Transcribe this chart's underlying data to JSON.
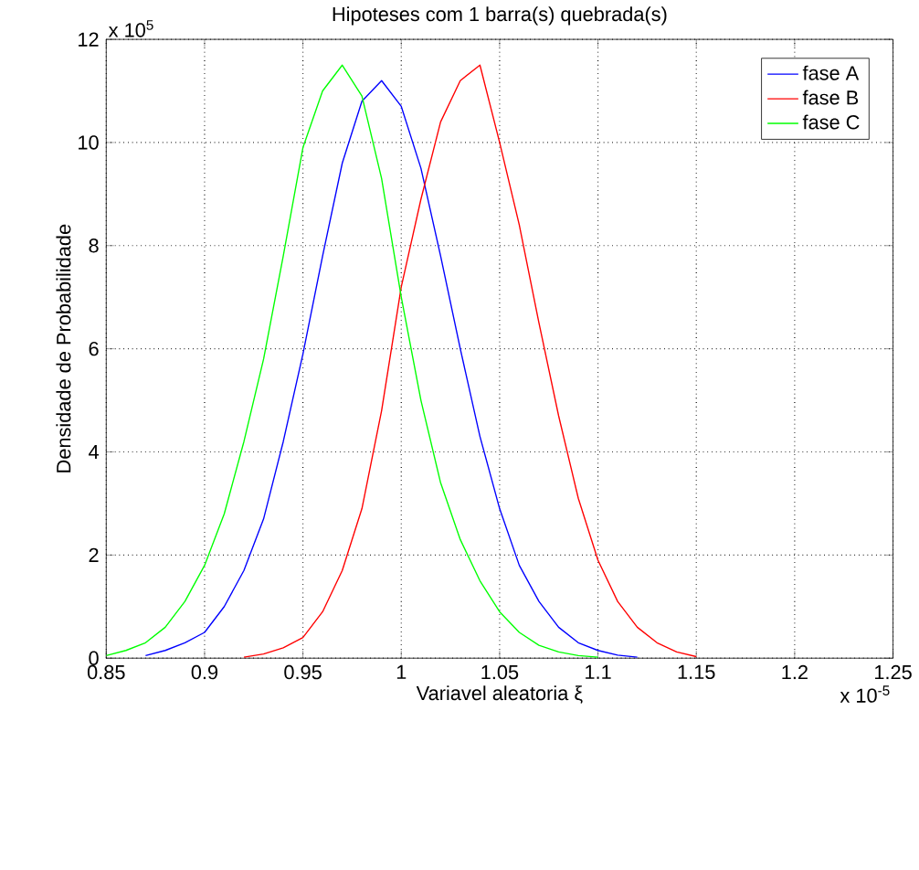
{
  "chart_data": {
    "type": "line",
    "title": "Hipoteses com 1 barra(s) quebrada(s)",
    "xlabel": "Variavel aleatoria ξ",
    "ylabel": "Densidade de Probabilidade",
    "annotations": [
      "x 10$^{5}$",
      "x 10$^{-5}$"
    ],
    "series": [
      {
        "name": "fase A",
        "color": "#0000ff",
        "x": [
          0.87,
          0.88,
          0.89,
          0.9,
          0.91,
          0.92,
          0.93,
          0.94,
          0.95,
          0.96,
          0.97,
          0.98,
          0.99,
          1.0,
          1.01,
          1.02,
          1.03,
          1.04,
          1.05,
          1.06,
          1.07,
          1.08,
          1.09,
          1.1,
          1.11,
          1.12
        ],
        "values": [
          0.05,
          0.15,
          0.3,
          0.5,
          1.0,
          1.7,
          2.7,
          4.2,
          5.9,
          7.8,
          9.6,
          10.8,
          11.2,
          10.7,
          9.5,
          7.8,
          6.0,
          4.3,
          2.9,
          1.8,
          1.1,
          0.6,
          0.3,
          0.15,
          0.06,
          0.02
        ]
      },
      {
        "name": "fase B",
        "color": "#ff0000",
        "x": [
          0.92,
          0.93,
          0.94,
          0.95,
          0.96,
          0.97,
          0.98,
          0.99,
          1.0,
          1.01,
          1.02,
          1.03,
          1.04,
          1.05,
          1.06,
          1.07,
          1.08,
          1.09,
          1.1,
          1.11,
          1.12,
          1.13,
          1.14,
          1.15
        ],
        "values": [
          0.02,
          0.08,
          0.2,
          0.4,
          0.9,
          1.7,
          2.9,
          4.8,
          7.2,
          8.9,
          10.4,
          11.2,
          11.5,
          10.0,
          8.4,
          6.5,
          4.7,
          3.1,
          1.9,
          1.1,
          0.6,
          0.3,
          0.12,
          0.03
        ]
      },
      {
        "name": "fase C",
        "color": "#00ff00",
        "x": [
          0.85,
          0.86,
          0.87,
          0.88,
          0.89,
          0.9,
          0.91,
          0.92,
          0.93,
          0.94,
          0.95,
          0.96,
          0.97,
          0.98,
          0.99,
          1.0,
          1.01,
          1.02,
          1.03,
          1.04,
          1.05,
          1.06,
          1.07,
          1.08,
          1.09,
          1.1
        ],
        "values": [
          0.05,
          0.15,
          0.3,
          0.6,
          1.1,
          1.8,
          2.8,
          4.2,
          5.8,
          7.8,
          9.9,
          11.0,
          11.5,
          10.9,
          9.3,
          7.0,
          5.0,
          3.4,
          2.3,
          1.5,
          0.9,
          0.5,
          0.25,
          0.12,
          0.05,
          0.02
        ]
      }
    ],
    "xlim": [
      0.85,
      1.25
    ],
    "xticks": [
      0.85,
      0.9,
      0.95,
      1,
      1.05,
      1.1,
      1.15,
      1.2,
      1.25
    ],
    "ylim": [
      0,
      12
    ],
    "yticks": [
      0,
      2,
      4,
      6,
      8,
      10,
      12
    ],
    "grid": true,
    "legend": "top right",
    "line_style": "solid",
    "marker": "none"
  }
}
